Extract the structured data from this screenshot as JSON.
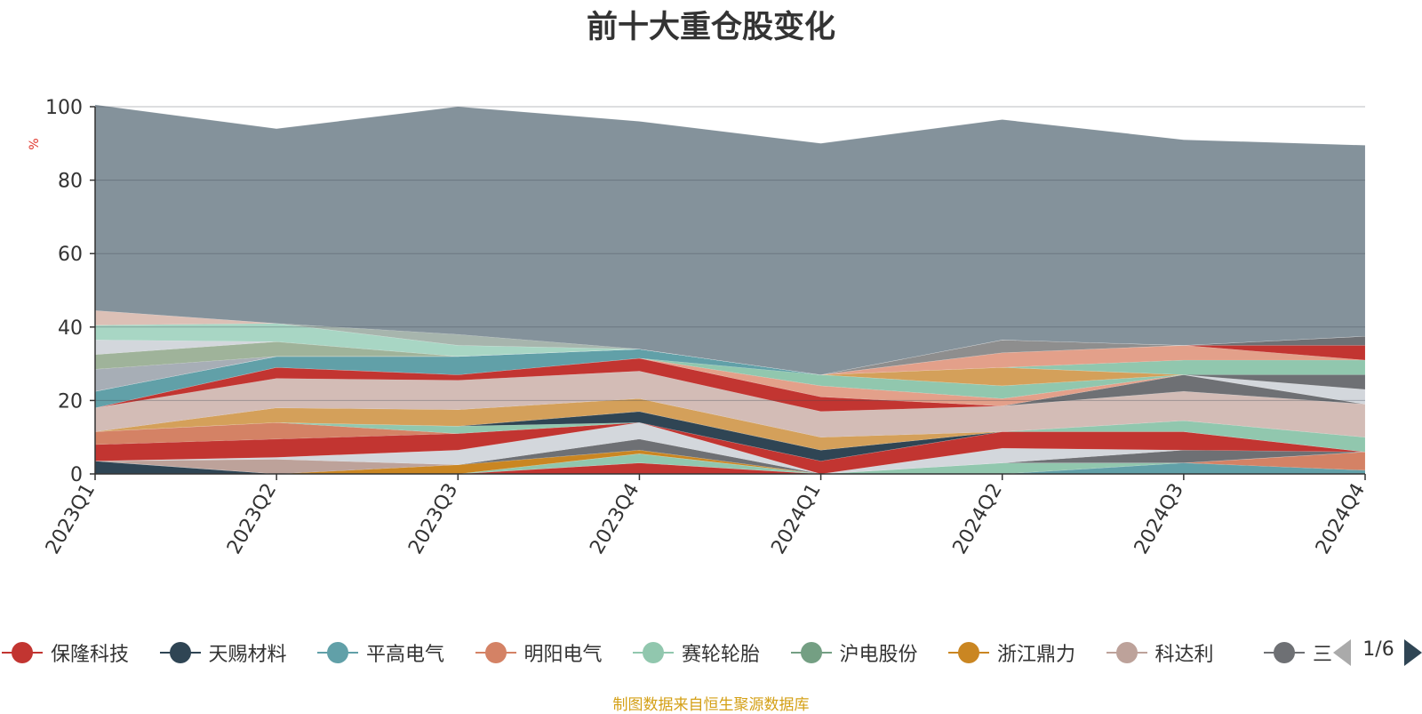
{
  "title": "前十大重仓股变化",
  "source": "制图数据来自恒生聚源数据库",
  "pager": {
    "text": "1/6"
  },
  "chart_data": {
    "type": "area",
    "stacked": true,
    "title": "前十大重仓股变化",
    "ylabel": "%",
    "ylim": [
      0,
      100
    ],
    "yticks": [
      "0",
      "20",
      "40",
      "60",
      "80",
      "100"
    ],
    "categories": [
      "2023Q1",
      "2023Q2",
      "2023Q3",
      "2023Q4",
      "2024Q1",
      "2024Q2",
      "2024Q3",
      "2024Q4"
    ],
    "grid": true,
    "legend_position": "bottom",
    "series": [
      {
        "name": "保隆科技",
        "color": "#c23531",
        "values": [
          0,
          0,
          0,
          3,
          0,
          0,
          0,
          0
        ]
      },
      {
        "name": "天赐材料",
        "color": "#2f4554",
        "values": [
          3.5,
          0,
          0,
          0,
          0,
          0,
          0,
          0
        ]
      },
      {
        "name": "平高电气",
        "color": "#61a0a8",
        "values": [
          0,
          0,
          0,
          0,
          0,
          0,
          3,
          1
        ]
      },
      {
        "name": "明阳电气",
        "color": "#d48265",
        "values": [
          0,
          0,
          0,
          0,
          0,
          0,
          0,
          5
        ]
      },
      {
        "name": "赛轮轮胎",
        "color": "#91c7ae",
        "values": [
          0,
          0,
          0,
          2.5,
          0,
          3,
          0,
          0
        ]
      },
      {
        "name": "沪电股份",
        "color": "#749f83",
        "values": [
          0,
          0,
          0,
          0,
          0,
          0,
          0,
          0
        ]
      },
      {
        "name": "浙江鼎力",
        "color": "#ca8622",
        "values": [
          0,
          0,
          2.5,
          1,
          0,
          0,
          0,
          0
        ]
      },
      {
        "name": "科达利",
        "color": "#bda29a",
        "values": [
          0,
          4,
          0,
          0,
          0,
          0,
          0,
          0
        ]
      },
      {
        "name": "三花智控",
        "color": "#6e7074",
        "values": [
          0,
          0,
          0,
          3,
          0,
          0,
          3.5,
          0
        ]
      },
      {
        "name": "",
        "color": "#d3d7dc",
        "values": [
          0,
          0.5,
          4,
          4.5,
          0,
          4,
          0,
          0
        ]
      },
      {
        "name": "",
        "color": "#c23531",
        "values": [
          4.5,
          5,
          4.5,
          0,
          3.5,
          4.5,
          5,
          0
        ]
      },
      {
        "name": "",
        "color": "#d48265",
        "values": [
          3.5,
          4.5,
          0,
          0,
          0,
          0,
          0,
          0
        ]
      },
      {
        "name": "",
        "color": "#91c7ae",
        "values": [
          0,
          0,
          2,
          0,
          0,
          0,
          0,
          0
        ]
      },
      {
        "name": "",
        "color": "#2f4554",
        "values": [
          0,
          0,
          0,
          3,
          3,
          0,
          0,
          0
        ]
      },
      {
        "name": "",
        "color": "#91c7ae",
        "values": [
          0,
          0,
          0,
          0,
          0,
          0,
          3,
          4
        ]
      },
      {
        "name": "",
        "color": "#d4a05a",
        "values": [
          0,
          4,
          4.5,
          3.5,
          3.5,
          0,
          0,
          0
        ]
      },
      {
        "name": "",
        "color": "#d3bcb6",
        "values": [
          6.5,
          8,
          8,
          7.5,
          7,
          7,
          8,
          9
        ]
      },
      {
        "name": "",
        "color": "#c23531",
        "values": [
          0,
          3,
          1.5,
          3.5,
          4,
          0,
          0,
          0
        ]
      },
      {
        "name": "",
        "color": "#6e7074",
        "values": [
          0,
          0,
          0,
          0,
          0,
          0,
          4.5,
          0
        ]
      },
      {
        "name": "",
        "color": "#e3a08a",
        "values": [
          0,
          0,
          0,
          0,
          3,
          2,
          0,
          0
        ]
      },
      {
        "name": "",
        "color": "#91c7ae",
        "values": [
          0,
          0,
          0,
          0,
          3,
          3.5,
          0,
          0
        ]
      },
      {
        "name": "",
        "color": "#61a0a8",
        "values": [
          4.5,
          3,
          5,
          2.5,
          0,
          0,
          0,
          0
        ]
      },
      {
        "name": "",
        "color": "#d4a05a",
        "values": [
          0,
          0,
          0,
          0,
          0,
          5,
          0,
          0
        ]
      },
      {
        "name": "",
        "color": "#d3d7dc",
        "values": [
          0,
          0,
          0,
          0,
          0,
          0,
          0,
          4
        ]
      },
      {
        "name": "",
        "color": "#6e7074",
        "values": [
          0,
          0,
          0,
          0,
          0,
          0,
          0,
          4
        ]
      },
      {
        "name": "",
        "color": "#91c7ae",
        "values": [
          0,
          0,
          0,
          0,
          0,
          0,
          4,
          4
        ]
      },
      {
        "name": "",
        "color": "#e3a08a",
        "values": [
          0,
          0,
          0,
          0,
          0,
          4,
          4,
          0
        ]
      },
      {
        "name": "",
        "color": "#c23531",
        "values": [
          0,
          0,
          0,
          0,
          0,
          0,
          0,
          4
        ]
      },
      {
        "name": "",
        "color": "#6e7074",
        "values": [
          0,
          0,
          0,
          0,
          0,
          0,
          0,
          2.5
        ]
      },
      {
        "name": "",
        "color": "#8e8e8e",
        "values": [
          0,
          0,
          0,
          0,
          0,
          3.5,
          0,
          0
        ]
      },
      {
        "name": "",
        "color": "#a7aeb6",
        "values": [
          6,
          0,
          0,
          0,
          0,
          0,
          0,
          0
        ]
      },
      {
        "name": "",
        "color": "#9fb39a",
        "values": [
          4,
          4,
          0,
          0,
          0,
          0,
          0,
          0
        ]
      },
      {
        "name": "",
        "color": "#d3d7dc",
        "values": [
          4,
          0,
          0,
          0,
          0,
          0,
          0,
          0
        ]
      },
      {
        "name": "",
        "color": "#a8d6c4",
        "values": [
          4,
          5,
          3,
          0,
          0,
          0,
          0,
          0
        ]
      },
      {
        "name": "",
        "color": "#dcc0b6",
        "values": [
          4,
          0,
          0,
          0,
          0,
          0,
          0,
          0
        ]
      },
      {
        "name": "",
        "color": "#a7b5ad",
        "values": [
          0,
          0,
          3,
          0,
          0,
          0,
          0,
          0
        ]
      },
      {
        "name": "",
        "color": "#84929b",
        "values": [
          56,
          53,
          62,
          62,
          63,
          60,
          56,
          52
        ]
      }
    ]
  }
}
